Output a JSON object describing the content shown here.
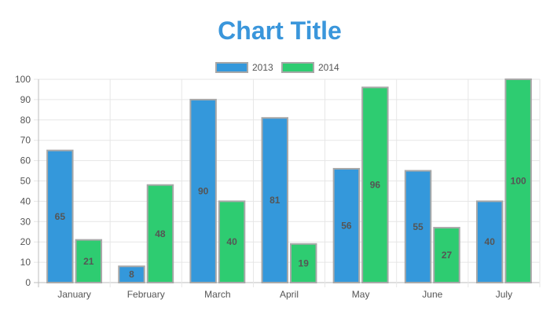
{
  "chart_data": {
    "type": "bar",
    "title": "Chart Title",
    "xlabel": "",
    "ylabel": "",
    "categories": [
      "January",
      "February",
      "March",
      "April",
      "May",
      "June",
      "July"
    ],
    "series": [
      {
        "name": "2013",
        "values": [
          65,
          8,
          90,
          81,
          56,
          55,
          40
        ]
      },
      {
        "name": "2014",
        "values": [
          21,
          48,
          40,
          19,
          96,
          27,
          100
        ]
      }
    ],
    "ylim": [
      0,
      100
    ],
    "yticks": [
      0,
      10,
      20,
      30,
      40,
      50,
      60,
      70,
      80,
      90,
      100
    ],
    "grid": true,
    "legend_position": "top",
    "data_labels": true
  },
  "colors": {
    "title": "#3a96db",
    "series": [
      "#3498db",
      "#2ecc71"
    ],
    "bar_border": "#a8a8a8",
    "grid": "#e6e6e6",
    "axis": "#bdbdbd",
    "text": "#555555",
    "label": "#555555"
  }
}
